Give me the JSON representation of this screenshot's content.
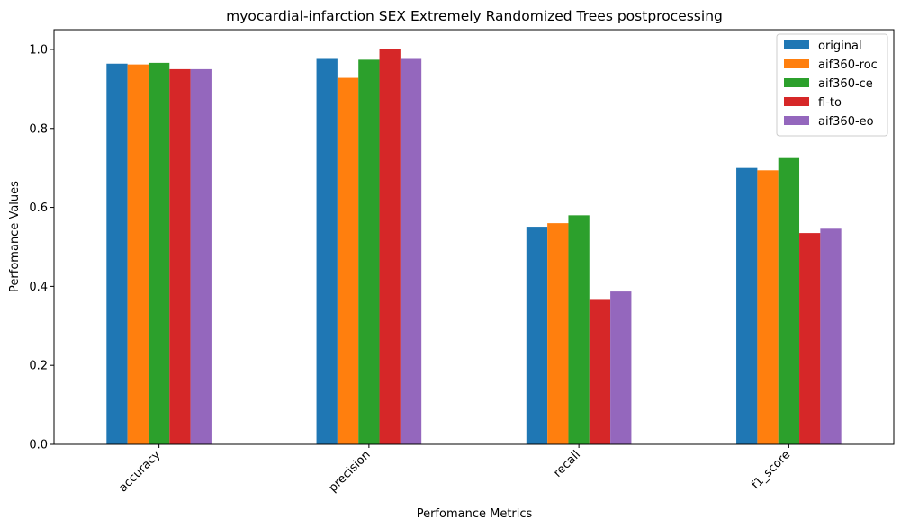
{
  "chart_data": {
    "type": "bar",
    "title": "myocardial-infarction SEX Extremely Randomized Trees postprocessing",
    "xlabel": "Perfomance Metrics",
    "ylabel": "Perfomance Values",
    "categories": [
      "accuracy",
      "precision",
      "recall",
      "f1_score"
    ],
    "yticks": [
      "0.0",
      "0.2",
      "0.4",
      "0.6",
      "0.8",
      "1.0"
    ],
    "ylim": [
      0,
      1.05
    ],
    "grid": false,
    "legend_position": "top-right",
    "series": [
      {
        "name": "original",
        "color": "#1f77b4",
        "values": [
          0.964,
          0.976,
          0.551,
          0.7
        ]
      },
      {
        "name": "aif360-roc",
        "color": "#ff7f0e",
        "values": [
          0.962,
          0.928,
          0.56,
          0.694
        ]
      },
      {
        "name": "aif360-ce",
        "color": "#2ca02c",
        "values": [
          0.966,
          0.974,
          0.58,
          0.725
        ]
      },
      {
        "name": "fl-to",
        "color": "#d62728",
        "values": [
          0.95,
          1.0,
          0.368,
          0.535
        ]
      },
      {
        "name": "aif360-eo",
        "color": "#9467bd",
        "values": [
          0.95,
          0.976,
          0.387,
          0.546
        ]
      }
    ]
  }
}
